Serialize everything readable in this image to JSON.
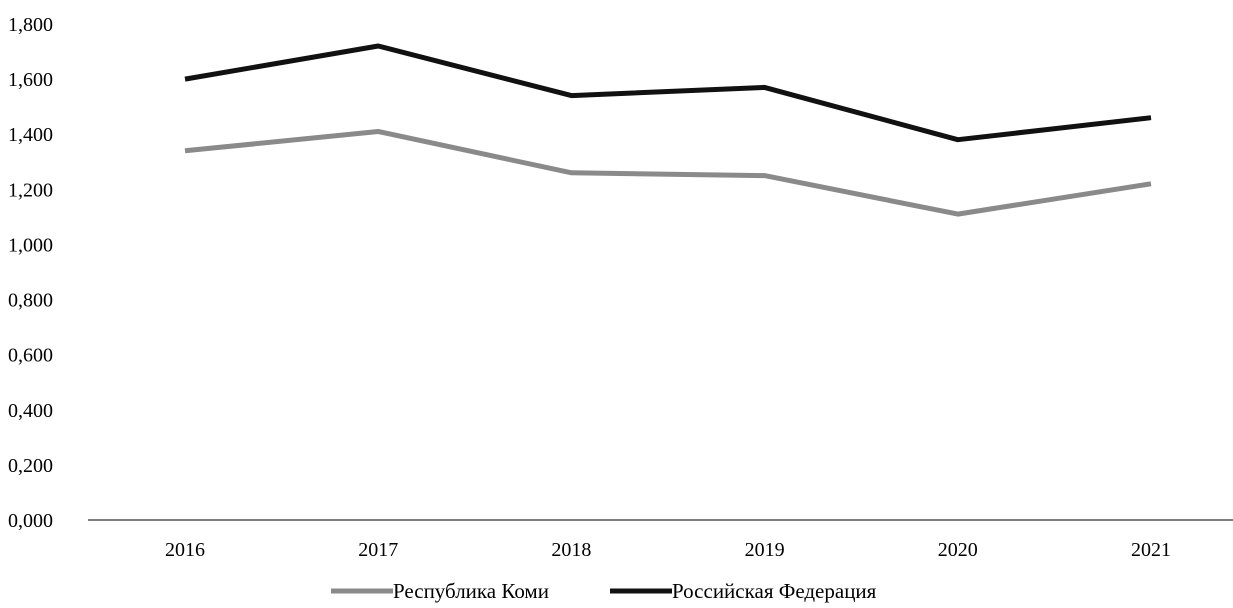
{
  "chart_data": {
    "type": "line",
    "title": "",
    "xlabel": "",
    "ylabel": "",
    "categories": [
      "2016",
      "2017",
      "2018",
      "2019",
      "2020",
      "2021"
    ],
    "ylim": [
      0,
      1.8
    ],
    "yticks": [
      0,
      0.2,
      0.4,
      0.6,
      0.8,
      1.0,
      1.2,
      1.4,
      1.6,
      1.8
    ],
    "ytick_labels": [
      "0,000",
      "0,200",
      "0,400",
      "0,600",
      "0,800",
      "1,000",
      "1,200",
      "1,400",
      "1,600",
      "1,800"
    ],
    "grid": false,
    "legend_position": "bottom",
    "series": [
      {
        "name": "Республика Коми",
        "color": "#8a8a8a",
        "values": [
          1.34,
          1.41,
          1.26,
          1.25,
          1.11,
          1.22
        ]
      },
      {
        "name": "Российская Федерация",
        "color": "#111111",
        "values": [
          1.6,
          1.72,
          1.54,
          1.57,
          1.38,
          1.46
        ]
      }
    ]
  }
}
